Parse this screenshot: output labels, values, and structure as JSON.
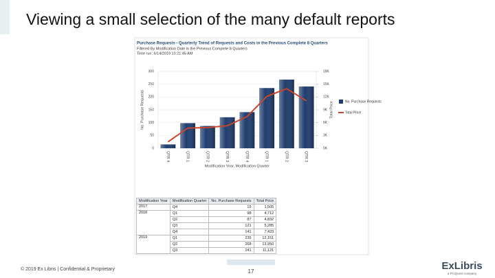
{
  "slide": {
    "title": "Viewing a small selection of the many default reports",
    "footer": "© 2019 Ex Libris | Confidential & Proprietary",
    "page_number": "17",
    "logo": "ExLibris",
    "logo_tagline": "a ProQuest company"
  },
  "chart_data": {
    "type": "bar",
    "title": "Purchase Requests - Quarterly Trend of Requests and Costs in the Previous Complete 8 Quarters",
    "subtitle": "Filtered By Modification Date in the Previous Complete 8 Quarters",
    "time_run": "Time run: 6/14/2019 10:21:45 AM",
    "categories": [
      "QTR 4",
      "QTR 1",
      "QTR 2",
      "QTR 3",
      "QTR 4",
      "QTR 1",
      "QTR 2",
      "QTR 3"
    ],
    "series": [
      {
        "name": "No. Purchase Requests",
        "color": "#1f3d6e",
        "type": "bar",
        "values": [
          15,
          98,
          87,
          121,
          141,
          235,
          268,
          241
        ]
      },
      {
        "name": "Total Price",
        "color": "#c8452a",
        "type": "line",
        "axis": "y2",
        "values": [
          1505,
          4712,
          4832,
          5285,
          7423,
          12151,
          13950,
          11121
        ]
      }
    ],
    "xlabel": "Modification Year, Modification Quarter",
    "ylabel": "No. Purchase Requests",
    "y2label": "Total Price",
    "ylim": [
      0,
      300
    ],
    "yticks": [
      0,
      50,
      100,
      150,
      200,
      250,
      300
    ],
    "y2lim": [
      0,
      18000
    ],
    "y2ticks": [
      {
        "value": 0,
        "label": "0K"
      },
      {
        "value": 3000,
        "label": "3K"
      },
      {
        "value": 6000,
        "label": "6K"
      },
      {
        "value": 9000,
        "label": "9K"
      },
      {
        "value": 12000,
        "label": "12K"
      },
      {
        "value": 15000,
        "label": "15K"
      },
      {
        "value": 18000,
        "label": "18K"
      }
    ],
    "grid": true,
    "legend": "right"
  },
  "table": {
    "columns": [
      "Modification Year",
      "Modification Quarter",
      "No. Purchase Requests",
      "Total Price"
    ],
    "groups": [
      {
        "year": "2017",
        "rows": [
          [
            "Q4",
            "15",
            "1,505"
          ]
        ]
      },
      {
        "year": "2018",
        "rows": [
          [
            "Q1",
            "98",
            "4,712"
          ],
          [
            "Q2",
            "87",
            "4,832"
          ],
          [
            "Q3",
            "121",
            "5,285"
          ],
          [
            "Q4",
            "141",
            "7,423"
          ]
        ]
      },
      {
        "year": "2019",
        "rows": [
          [
            "Q1",
            "235",
            "12,151"
          ],
          [
            "Q2",
            "268",
            "13,950"
          ],
          [
            "Q3",
            "241",
            "11,121"
          ]
        ]
      }
    ]
  }
}
